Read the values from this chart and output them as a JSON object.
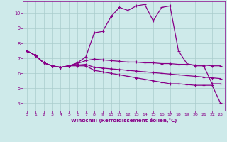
{
  "background_color": "#ceeaea",
  "grid_color": "#aacccc",
  "line_color": "#880088",
  "marker": "+",
  "markersize": 3,
  "linewidth": 0.9,
  "xlabel": "Windchill (Refroidissement éolien,°C)",
  "xlim": [
    -0.5,
    23.5
  ],
  "ylim": [
    3.5,
    10.8
  ],
  "yticks": [
    4,
    5,
    6,
    7,
    8,
    9,
    10
  ],
  "xticks": [
    0,
    1,
    2,
    3,
    4,
    5,
    6,
    7,
    8,
    9,
    10,
    11,
    12,
    13,
    14,
    15,
    16,
    17,
    18,
    19,
    20,
    21,
    22,
    23
  ],
  "series": [
    [
      7.5,
      7.2,
      6.7,
      6.5,
      6.4,
      6.5,
      6.7,
      7.1,
      8.7,
      8.8,
      9.8,
      10.4,
      10.2,
      10.5,
      10.6,
      9.5,
      10.4,
      10.5,
      7.5,
      6.65,
      6.5,
      6.5,
      5.3,
      5.3
    ],
    [
      7.5,
      7.2,
      6.7,
      6.5,
      6.4,
      6.5,
      6.65,
      6.85,
      6.95,
      6.9,
      6.85,
      6.8,
      6.75,
      6.75,
      6.7,
      6.7,
      6.65,
      6.65,
      6.6,
      6.6,
      6.55,
      6.55,
      6.5,
      6.5
    ],
    [
      7.5,
      7.2,
      6.7,
      6.5,
      6.4,
      6.5,
      6.55,
      6.6,
      6.4,
      6.35,
      6.3,
      6.25,
      6.2,
      6.15,
      6.1,
      6.05,
      6.0,
      5.95,
      5.9,
      5.85,
      5.8,
      5.75,
      5.7,
      5.65
    ],
    [
      7.5,
      7.2,
      6.7,
      6.5,
      6.4,
      6.5,
      6.5,
      6.5,
      6.2,
      6.1,
      6.0,
      5.9,
      5.8,
      5.7,
      5.6,
      5.5,
      5.4,
      5.3,
      5.3,
      5.25,
      5.2,
      5.2,
      5.2,
      4.0
    ]
  ]
}
